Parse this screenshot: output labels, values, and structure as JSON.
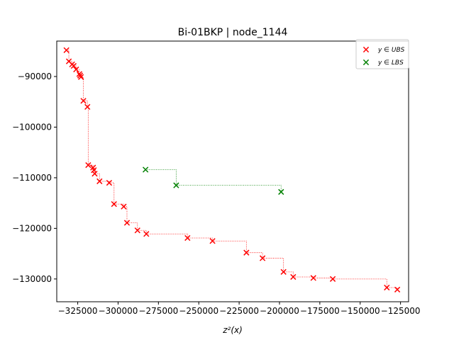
{
  "chart_data": {
    "type": "scatter",
    "title": "Bi-01BKP | node_1144",
    "xlabel": "z²(x)",
    "ylabel": "",
    "xlim": [
      -338000,
      -120000
    ],
    "ylim": [
      -134500,
      -83000
    ],
    "x_ticks": [
      -325000,
      -300000,
      -275000,
      -250000,
      -225000,
      -200000,
      -175000,
      -150000,
      -125000
    ],
    "x_tick_labels": [
      "−325000",
      "−300000",
      "−275000",
      "−250000",
      "−225000",
      "−200000",
      "−175000",
      "−150000",
      "−125000"
    ],
    "y_ticks": [
      -90000,
      -100000,
      -110000,
      -120000,
      -130000
    ],
    "y_tick_labels": [
      "−90000",
      "−100000",
      "−110000",
      "−120000",
      "−130000"
    ],
    "grid": false,
    "legend_position": "top-right",
    "series": [
      {
        "name": "y ∈ UBS",
        "color": "#ff0000",
        "marker": "x",
        "step_line": "dotted",
        "points": [
          [
            -332000,
            -84800
          ],
          [
            -330500,
            -87000
          ],
          [
            -328500,
            -87600
          ],
          [
            -327500,
            -87900
          ],
          [
            -326000,
            -88600
          ],
          [
            -324000,
            -89500
          ],
          [
            -323500,
            -89800
          ],
          [
            -323000,
            -90100
          ],
          [
            -321500,
            -94800
          ],
          [
            -319000,
            -96000
          ],
          [
            -318500,
            -107500
          ],
          [
            -315500,
            -108000
          ],
          [
            -315000,
            -108500
          ],
          [
            -314500,
            -109200
          ],
          [
            -311500,
            -110700
          ],
          [
            -305500,
            -111000
          ],
          [
            -302500,
            -115200
          ],
          [
            -296500,
            -115700
          ],
          [
            -294500,
            -118900
          ],
          [
            -288000,
            -120400
          ],
          [
            -282500,
            -121100
          ],
          [
            -257000,
            -121900
          ],
          [
            -241500,
            -122500
          ],
          [
            -220500,
            -124800
          ],
          [
            -210500,
            -125900
          ],
          [
            -197500,
            -128600
          ],
          [
            -191500,
            -129600
          ],
          [
            -179000,
            -129800
          ],
          [
            -167000,
            -130000
          ],
          [
            -133500,
            -131700
          ],
          [
            -127000,
            -132100
          ]
        ]
      },
      {
        "name": "y ∈ LBS",
        "color": "#008000",
        "marker": "x",
        "step_line": "dotted",
        "points": [
          [
            -283000,
            -108400
          ],
          [
            -264000,
            -111500
          ],
          [
            -199000,
            -112800
          ]
        ]
      }
    ]
  }
}
